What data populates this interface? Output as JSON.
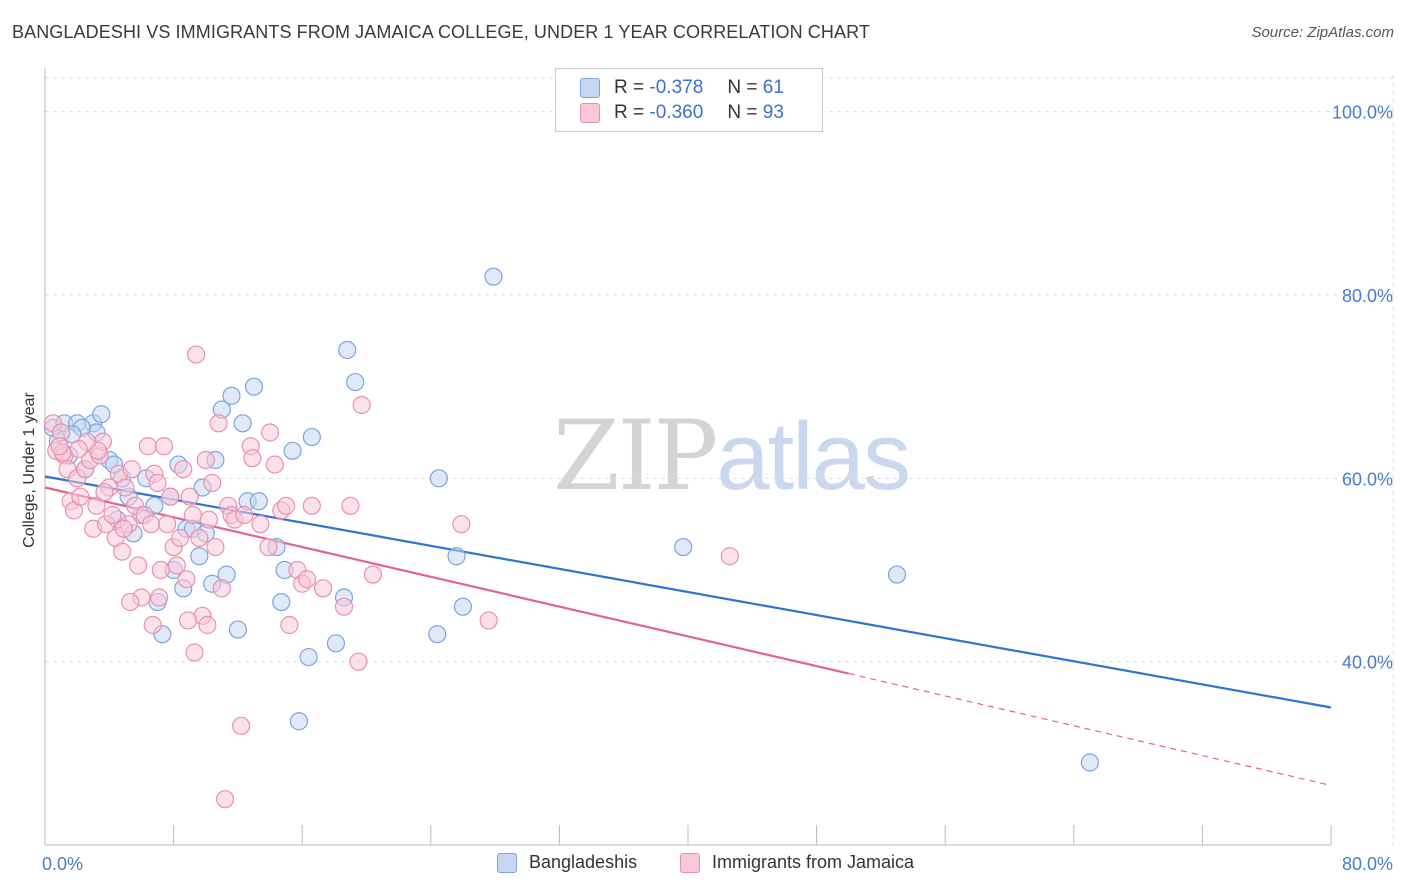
{
  "title": "BANGLADESHI VS IMMIGRANTS FROM JAMAICA COLLEGE, UNDER 1 YEAR CORRELATION CHART",
  "source": "Source: ZipAtlas.com",
  "watermark": {
    "zip": "ZIP",
    "atlas": "atlas"
  },
  "legend_top": {
    "rows": [
      {
        "r_label": "R =",
        "r_value": "-0.378",
        "n_label": "N =",
        "n_value": "61"
      },
      {
        "r_label": "R =",
        "r_value": "-0.360",
        "n_label": "N =",
        "n_value": "93"
      }
    ]
  },
  "legend_bottom": {
    "series1": "Bangladeshis",
    "series2": "Immigrants from Jamaica"
  },
  "colors": {
    "blue": "#7ba4e0",
    "blue_fill": "#c5d7f3",
    "blue_line": "#2f74d0",
    "pink": "#eb8fb0",
    "pink_fill": "#f7c9d9",
    "pink_line": "#e0648f",
    "grid": "#dddddd",
    "axis_text": "#4a7bd0"
  },
  "chart_data": {
    "type": "scatter",
    "title": "BANGLADESHI VS IMMIGRANTS FROM JAMAICA COLLEGE, UNDER 1 YEAR CORRELATION CHART",
    "xlabel": "",
    "ylabel": "College, Under 1 year",
    "xlim": [
      0,
      80
    ],
    "ylim": [
      20,
      104
    ],
    "x_tick_labels": [
      "0.0%",
      "80.0%"
    ],
    "y_ticks": [
      40,
      60,
      80,
      100
    ],
    "y_tick_labels": [
      "40.0%",
      "60.0%",
      "80.0%",
      "100.0%"
    ],
    "grid": true,
    "legend_placement": "top-center",
    "series": [
      {
        "name": "Bangladeshis",
        "color": "#7ba4e0",
        "R": -0.378,
        "N": 61,
        "trend": {
          "x": [
            0,
            80
          ],
          "y": [
            60.2,
            35.0
          ]
        },
        "points": [
          [
            0.5,
            65.5
          ],
          [
            0.8,
            64.0
          ],
          [
            1.0,
            65.0
          ],
          [
            1.2,
            66.0
          ],
          [
            1.5,
            62.5
          ],
          [
            2.0,
            66.0
          ],
          [
            2.5,
            61.0
          ],
          [
            3.0,
            66.0
          ],
          [
            3.2,
            65.0
          ],
          [
            3.5,
            67.0
          ],
          [
            4.0,
            62.0
          ],
          [
            4.3,
            61.5
          ],
          [
            4.8,
            60.0
          ],
          [
            5.2,
            58.0
          ],
          [
            5.5,
            54.0
          ],
          [
            6.0,
            56.0
          ],
          [
            6.3,
            60.0
          ],
          [
            6.8,
            57.0
          ],
          [
            7.0,
            46.5
          ],
          [
            7.3,
            43.0
          ],
          [
            7.8,
            58.0
          ],
          [
            8.0,
            50.0
          ],
          [
            8.3,
            61.5
          ],
          [
            8.6,
            48.0
          ],
          [
            8.8,
            54.5
          ],
          [
            9.2,
            54.5
          ],
          [
            9.6,
            51.5
          ],
          [
            9.8,
            59.0
          ],
          [
            10.0,
            54.0
          ],
          [
            10.4,
            48.5
          ],
          [
            10.6,
            62.0
          ],
          [
            11.0,
            67.5
          ],
          [
            11.3,
            49.5
          ],
          [
            11.6,
            69.0
          ],
          [
            12.0,
            43.5
          ],
          [
            12.3,
            66.0
          ],
          [
            12.6,
            57.5
          ],
          [
            13.0,
            70.0
          ],
          [
            13.3,
            57.5
          ],
          [
            14.4,
            52.5
          ],
          [
            14.7,
            46.5
          ],
          [
            14.9,
            50.0
          ],
          [
            15.4,
            63.0
          ],
          [
            15.8,
            33.5
          ],
          [
            16.4,
            40.5
          ],
          [
            16.6,
            64.5
          ],
          [
            18.1,
            42.0
          ],
          [
            18.6,
            47.0
          ],
          [
            18.8,
            74.0
          ],
          [
            19.3,
            70.5
          ],
          [
            24.5,
            60.0
          ],
          [
            25.6,
            51.5
          ],
          [
            24.4,
            43.0
          ],
          [
            26.0,
            46.0
          ],
          [
            27.9,
            82.0
          ],
          [
            39.7,
            52.5
          ],
          [
            53.0,
            49.5
          ],
          [
            65.0,
            29.0
          ],
          [
            4.5,
            55.5
          ],
          [
            2.3,
            65.5
          ],
          [
            1.7,
            64.8
          ]
        ]
      },
      {
        "name": "Immigrants from Jamaica",
        "color": "#eb8fb0",
        "R": -0.36,
        "N": 93,
        "trend": {
          "x": [
            0,
            50
          ],
          "y": [
            59.0,
            38.7
          ],
          "dashed_to": {
            "x": 80,
            "y": 26.5
          }
        },
        "points": [
          [
            0.5,
            66.0
          ],
          [
            0.7,
            63.0
          ],
          [
            1.0,
            65.0
          ],
          [
            1.2,
            62.5
          ],
          [
            1.4,
            61.0
          ],
          [
            1.6,
            57.5
          ],
          [
            1.8,
            56.5
          ],
          [
            2.0,
            60.0
          ],
          [
            2.2,
            58.0
          ],
          [
            2.5,
            61.0
          ],
          [
            2.8,
            62.0
          ],
          [
            3.0,
            54.5
          ],
          [
            3.2,
            57.0
          ],
          [
            3.4,
            62.5
          ],
          [
            3.6,
            64.0
          ],
          [
            3.8,
            55.0
          ],
          [
            4.0,
            59.0
          ],
          [
            4.2,
            56.0
          ],
          [
            4.4,
            53.5
          ],
          [
            4.6,
            60.5
          ],
          [
            4.8,
            52.0
          ],
          [
            5.0,
            59.0
          ],
          [
            5.2,
            55.0
          ],
          [
            5.4,
            61.0
          ],
          [
            5.6,
            57.0
          ],
          [
            5.8,
            50.5
          ],
          [
            6.0,
            47.0
          ],
          [
            6.2,
            56.0
          ],
          [
            6.4,
            63.5
          ],
          [
            6.6,
            55.0
          ],
          [
            6.8,
            60.5
          ],
          [
            7.0,
            59.5
          ],
          [
            7.2,
            50.0
          ],
          [
            7.4,
            63.5
          ],
          [
            7.6,
            55.0
          ],
          [
            7.8,
            58.0
          ],
          [
            8.0,
            52.5
          ],
          [
            8.2,
            50.5
          ],
          [
            8.4,
            53.5
          ],
          [
            8.6,
            61.0
          ],
          [
            8.8,
            49.0
          ],
          [
            9.0,
            58.0
          ],
          [
            9.2,
            56.0
          ],
          [
            9.4,
            73.5
          ],
          [
            9.6,
            53.5
          ],
          [
            9.8,
            45.0
          ],
          [
            10.0,
            62.0
          ],
          [
            10.2,
            55.5
          ],
          [
            10.4,
            59.5
          ],
          [
            10.6,
            52.5
          ],
          [
            10.8,
            66.0
          ],
          [
            11.0,
            48.0
          ],
          [
            11.2,
            25.0
          ],
          [
            11.4,
            57.0
          ],
          [
            11.6,
            56.0
          ],
          [
            11.8,
            55.5
          ],
          [
            12.2,
            33.0
          ],
          [
            12.4,
            56.0
          ],
          [
            12.8,
            63.5
          ],
          [
            13.4,
            55.0
          ],
          [
            14.0,
            65.0
          ],
          [
            14.3,
            61.5
          ],
          [
            14.7,
            56.5
          ],
          [
            15.0,
            57.0
          ],
          [
            15.2,
            44.0
          ],
          [
            15.7,
            50.0
          ],
          [
            16.0,
            48.5
          ],
          [
            16.3,
            49.0
          ],
          [
            16.6,
            57.0
          ],
          [
            17.3,
            48.0
          ],
          [
            18.6,
            46.0
          ],
          [
            19.0,
            57.0
          ],
          [
            19.5,
            40.0
          ],
          [
            19.7,
            68.0
          ],
          [
            20.4,
            49.5
          ],
          [
            25.9,
            55.0
          ],
          [
            27.6,
            44.5
          ],
          [
            42.6,
            51.5
          ],
          [
            3.3,
            63.0
          ],
          [
            1.1,
            62.8
          ],
          [
            2.6,
            64.0
          ],
          [
            5.3,
            46.5
          ],
          [
            7.1,
            47.0
          ],
          [
            8.9,
            44.5
          ],
          [
            9.3,
            41.0
          ],
          [
            10.1,
            44.0
          ],
          [
            6.7,
            44.0
          ],
          [
            4.9,
            54.5
          ],
          [
            2.1,
            63.2
          ],
          [
            0.9,
            63.5
          ],
          [
            3.7,
            58.5
          ],
          [
            12.9,
            62.2
          ],
          [
            13.9,
            52.5
          ]
        ]
      }
    ]
  }
}
